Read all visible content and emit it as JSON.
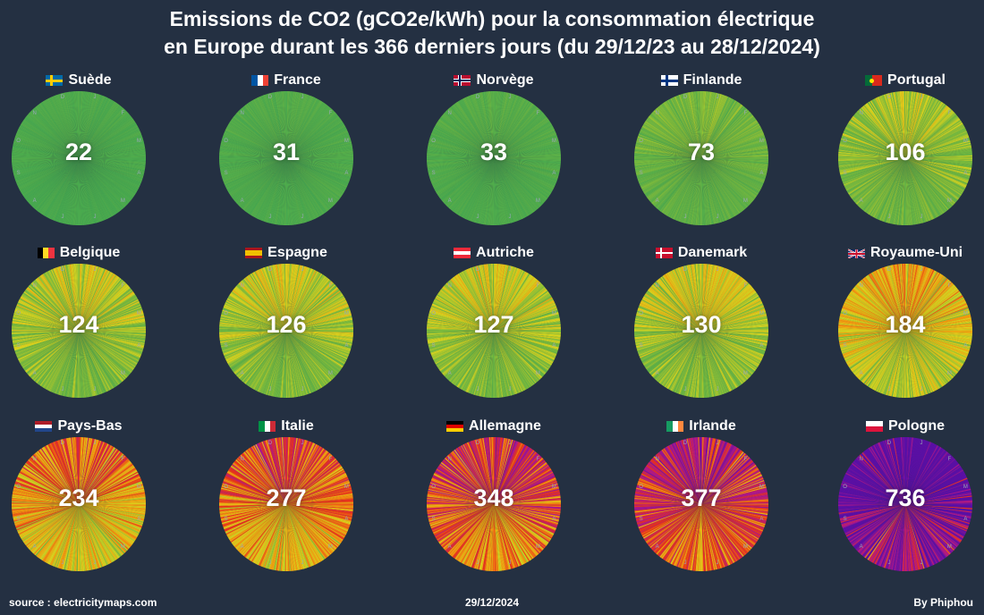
{
  "header": {
    "title_line1": "Emissions de CO2 (gCO2e/kWh) pour la consommation électrique",
    "title_line2": "en Europe durant les 366 derniers jours (du 29/12/23 au 28/12/2024)"
  },
  "footer": {
    "source": "source : electricitymaps.com",
    "date": "29/12/2024",
    "author": "By Phiphou"
  },
  "month_labels": [
    "J",
    "F",
    "M",
    "A",
    "M",
    "J",
    "J",
    "A",
    "S",
    "O",
    "N",
    "D"
  ],
  "chart_data": {
    "type": "pie",
    "days": 366,
    "countries": [
      {
        "name": "Suède",
        "flag": "sweden-flag",
        "value": 22
      },
      {
        "name": "France",
        "flag": "france-flag",
        "value": 31
      },
      {
        "name": "Norvège",
        "flag": "norway-flag",
        "value": 33
      },
      {
        "name": "Finlande",
        "flag": "finland-flag",
        "value": 73
      },
      {
        "name": "Portugal",
        "flag": "portugal-flag",
        "value": 106
      },
      {
        "name": "Belgique",
        "flag": "belgium-flag",
        "value": 124
      },
      {
        "name": "Espagne",
        "flag": "spain-flag",
        "value": 126
      },
      {
        "name": "Autriche",
        "flag": "austria-flag",
        "value": 127
      },
      {
        "name": "Danemark",
        "flag": "denmark-flag",
        "value": 130
      },
      {
        "name": "Royaume-Uni",
        "flag": "uk-flag",
        "value": 184
      },
      {
        "name": "Pays-Bas",
        "flag": "netherlands-flag",
        "value": 234
      },
      {
        "name": "Italie",
        "flag": "italy-flag",
        "value": 277
      },
      {
        "name": "Allemagne",
        "flag": "germany-flag",
        "value": 348
      },
      {
        "name": "Irlande",
        "flag": "ireland-flag",
        "value": 377
      },
      {
        "name": "Pologne",
        "flag": "poland-flag",
        "value": 736
      }
    ],
    "color_scale": [
      {
        "value": 0,
        "color": "#3fa652"
      },
      {
        "value": 100,
        "color": "#7dbb3c"
      },
      {
        "value": 160,
        "color": "#d9d41e"
      },
      {
        "value": 250,
        "color": "#f29b0f"
      },
      {
        "value": 350,
        "color": "#e9331a"
      },
      {
        "value": 500,
        "color": "#b0188a"
      },
      {
        "value": 750,
        "color": "#5b0fa6"
      }
    ]
  }
}
